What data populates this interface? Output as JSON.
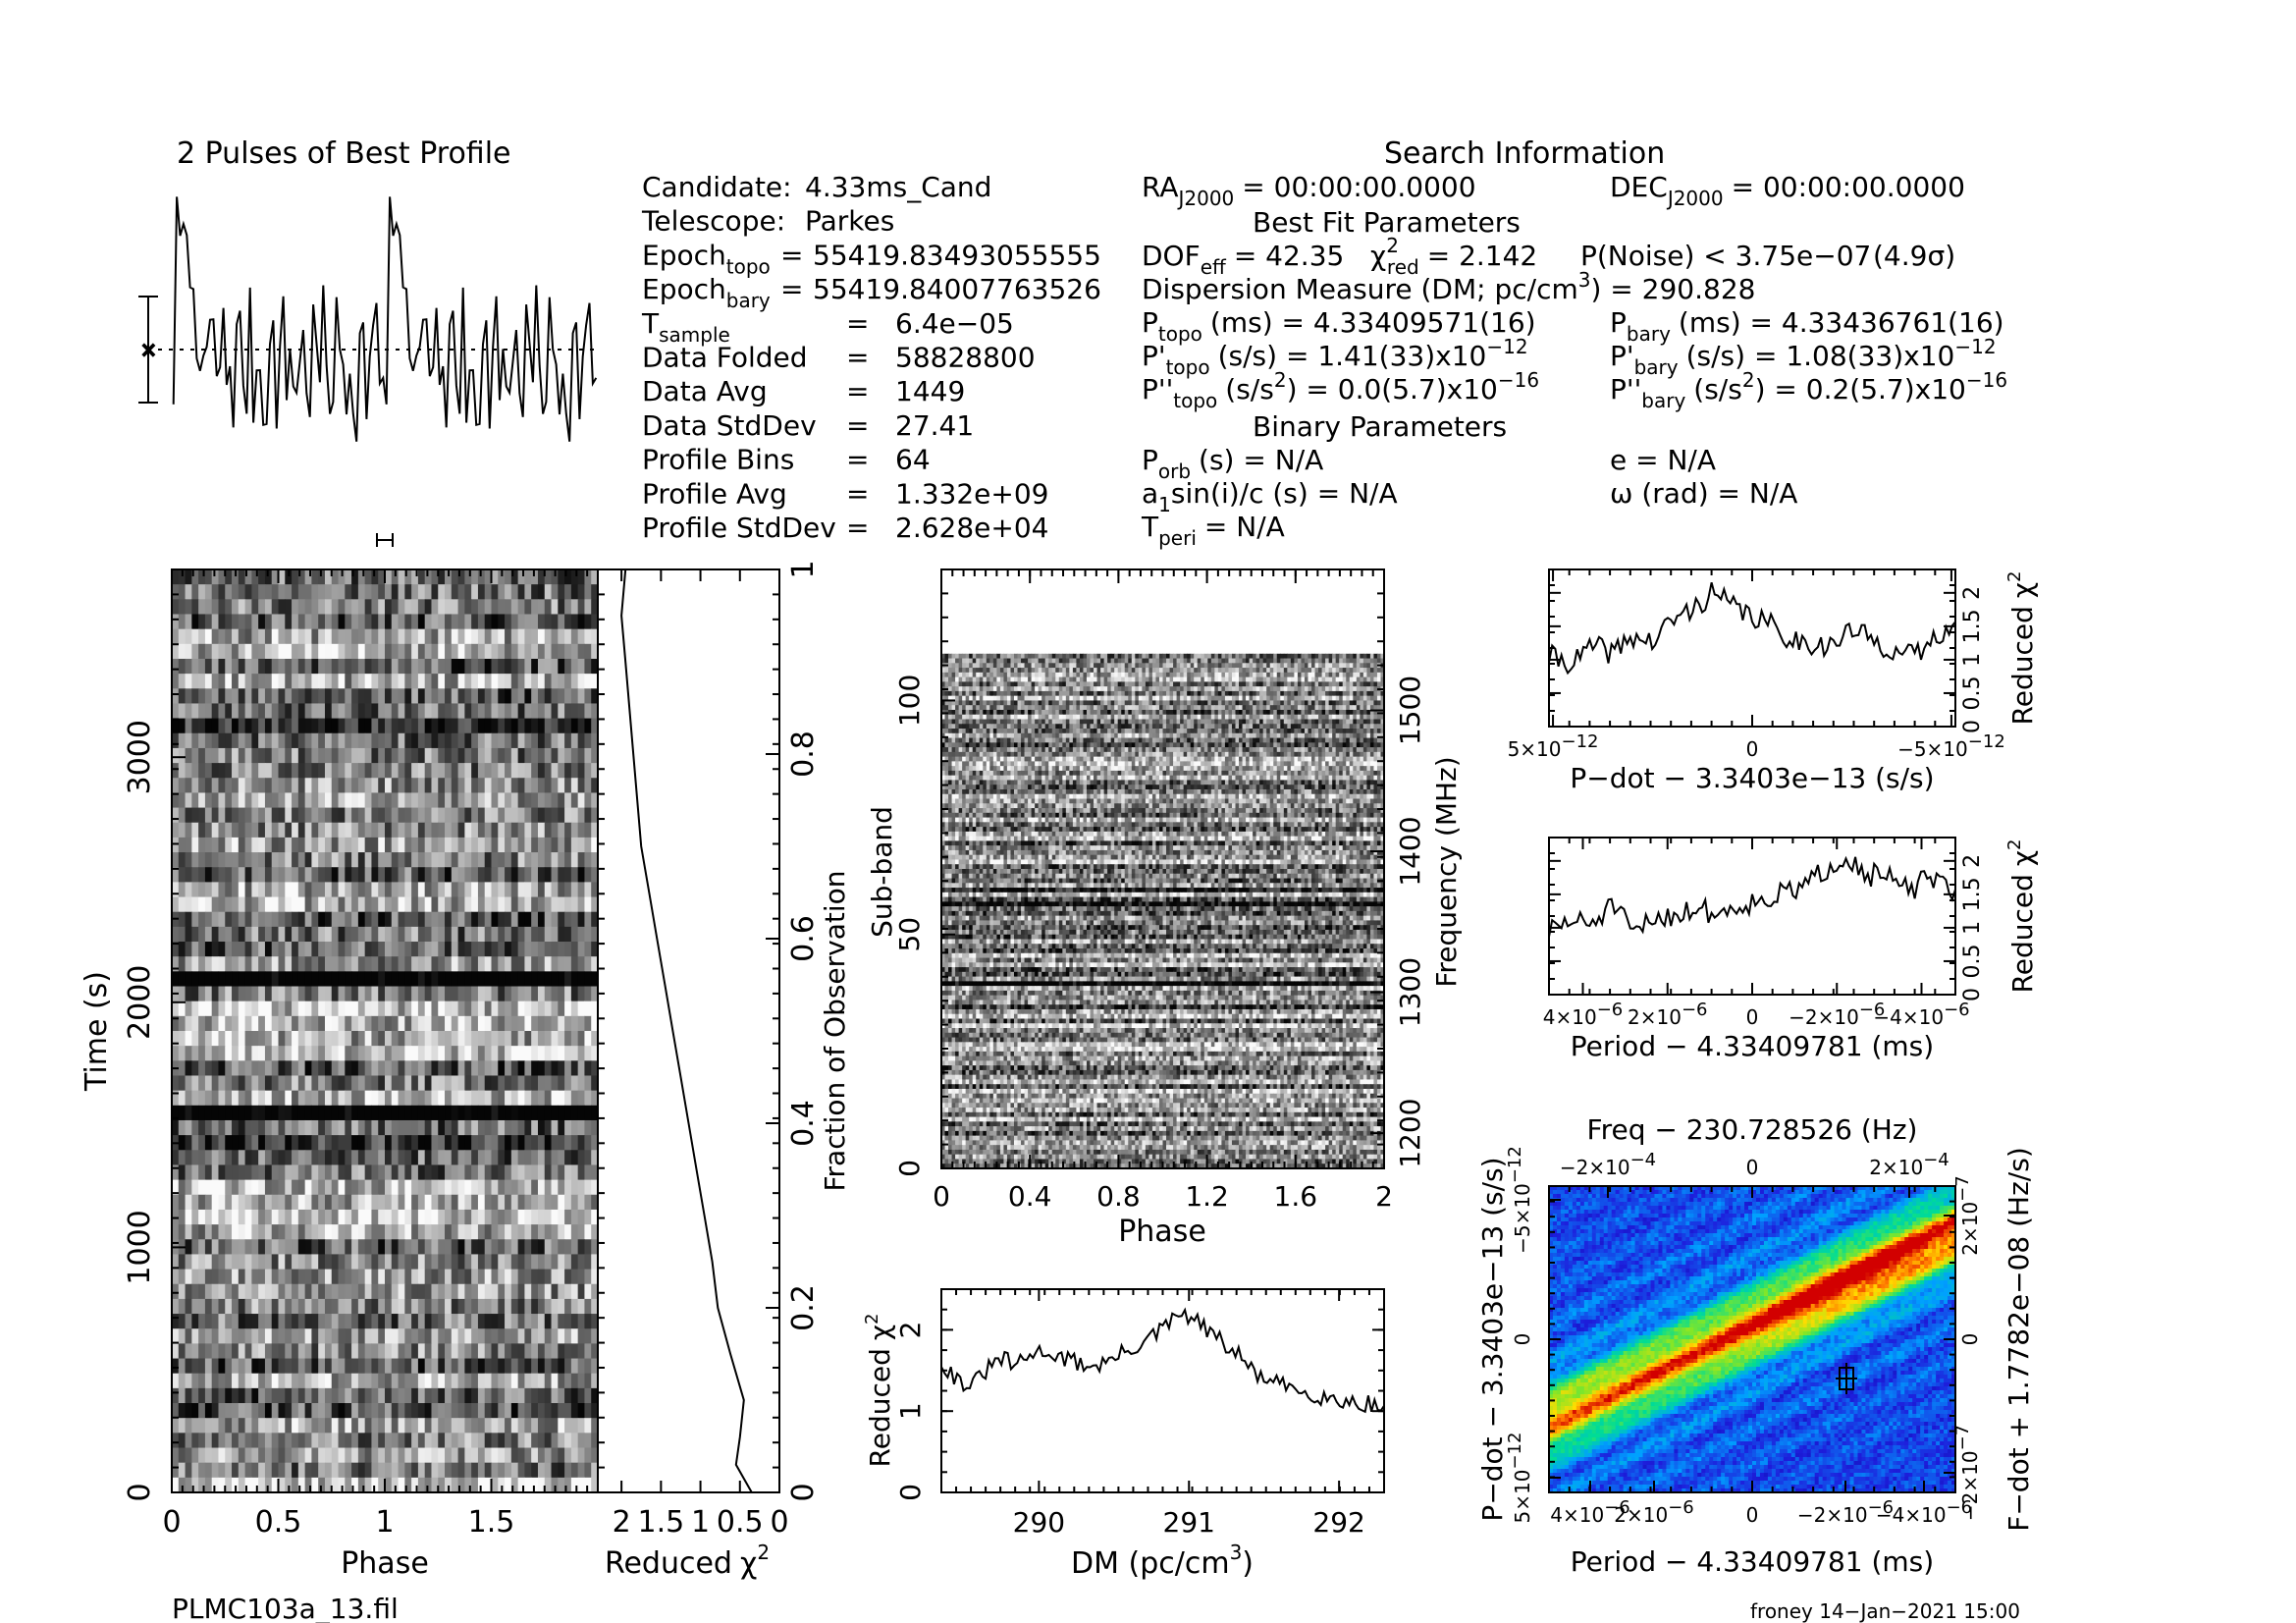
{
  "page": {
    "filename": "PLMC103a_13.fil",
    "footer": "froney 14−Jan−2021 15:00"
  },
  "profile": {
    "title": "2 Pulses of Best Profile"
  },
  "search_info": {
    "title": "Search Information",
    "left_rows": [
      {
        "label": "Candidate:",
        "sep": "",
        "value": "4.33ms_Cand"
      },
      {
        "label": "Telescope:",
        "sep": "",
        "value": "Parkes"
      },
      {
        "label": "Epoch",
        "sub": "topo",
        "sep": "=",
        "value": "55419.83493055555"
      },
      {
        "label": "Epoch",
        "sub": "bary",
        "sep": "=",
        "value": "55419.84007763526"
      },
      {
        "label": "T",
        "sub": "sample",
        "sep": "=",
        "value": "6.4e−05"
      },
      {
        "label": "Data Folded",
        "sep": "=",
        "value": "58828800"
      },
      {
        "label": "Data Avg",
        "sep": "=",
        "value": "1449"
      },
      {
        "label": "Data StdDev",
        "sep": "=",
        "value": "27.41"
      },
      {
        "label": "Profile Bins",
        "sep": "=",
        "value": "64"
      },
      {
        "label": "Profile Avg",
        "sep": "=",
        "value": "1.332e+09"
      },
      {
        "label": "Profile StdDev",
        "sep": "=",
        "value": "2.628e+04"
      }
    ],
    "ra": "RA",
    "ra_sub": "J2000",
    "ra_value": "= 00:00:00.0000",
    "dec": "DEC",
    "dec_sub": "J2000",
    "dec_value": "= 00:00:00.0000",
    "best_fit_title": "Best Fit Parameters",
    "dof_label": "DOF",
    "dof_sub": "eff",
    "dof_value": "= 42.35",
    "chi_sym": "χ",
    "chi_sup": "2",
    "chi_sub": "red",
    "chi_value": "= 2.142",
    "pnoise": "P(Noise) < 3.75e−07",
    "sigma": "(4.9σ)",
    "dm_line_a": "Dispersion Measure (DM; pc/cm",
    "dm_line_sup": "3",
    "dm_line_b": ") = 290.828",
    "p": "P",
    "ptopo_sub": "topo",
    "ptopo_value": "(ms) =  4.33409571(16)",
    "pbary_sub": "bary",
    "pbary_value": "(ms) =  4.33436761(16)",
    "pd": "P'",
    "pdtopo_value": "(s/s) =  1.41(33)x10",
    "pdtopo_exp": "−12",
    "pdbary_value": "(s/s) =  1.08(33)x10",
    "pdbary_exp": "−12",
    "pdd": "P''",
    "pddtopo_value": "(s/s",
    "pdd_sup": "2",
    "pddtopo_value2": ") = 0.0(5.7)x10",
    "pddtopo_exp": "−16",
    "pddbary_value": "(s/s",
    "pddbary_value2": ") =  0.2(5.7)x10",
    "pddbary_exp": "−16",
    "binary_title": "Binary Parameters",
    "porb_label": "P",
    "porb_sub": "orb",
    "porb_value": "(s) = N/A",
    "e_value": "e = N/A",
    "a1_label": "a",
    "a1_sub": "1",
    "a1_value": "sin(i)/c (s) = N/A",
    "omega_value": "ω (rad) = N/A",
    "tperi_label": "T",
    "tperi_sub": "peri",
    "tperi_value": "= N/A"
  },
  "chart_data": [
    {
      "id": "time_phase",
      "type": "heatmap",
      "xlabel": "Phase",
      "ylabel": "Time (s)",
      "xticks": [
        "0",
        "0.5",
        "1",
        "1.5"
      ],
      "xtick_values": [
        0,
        0.5,
        1,
        1.5
      ],
      "yticks": [
        "0",
        "1000",
        "2000",
        "3000"
      ],
      "ytick_values": [
        0,
        1000,
        2000,
        3000
      ],
      "xlim": [
        0,
        2
      ],
      "ylim": [
        0,
        3766
      ],
      "colormap": "grayscale",
      "right_axis_label": "Fraction of Observation",
      "right_ticks": [
        "0",
        "0.2",
        "0.4",
        "0.6",
        "0.8",
        "1"
      ]
    },
    {
      "id": "time_chi",
      "type": "line",
      "xlabel": "Reduced",
      "xlabel_sym": "χ",
      "xlabel_sup": "2",
      "xticks": [
        "2",
        "1.5",
        "1",
        "0.5",
        "0"
      ],
      "xtick_values": [
        2,
        1.5,
        1,
        0.5,
        0
      ],
      "xlim": [
        2.3,
        0
      ],
      "y_fraction": [
        0,
        0.03,
        0.06,
        0.1,
        0.15,
        0.2,
        0.25,
        0.3,
        0.35,
        0.4,
        0.45,
        0.5,
        0.55,
        0.6,
        0.65,
        0.7,
        0.75,
        0.8,
        0.85,
        0.9,
        0.95,
        1.0
      ],
      "values": [
        0.35,
        0.55,
        0.5,
        0.45,
        0.62,
        0.78,
        0.85,
        0.95,
        1.05,
        1.15,
        1.25,
        1.35,
        1.45,
        1.55,
        1.65,
        1.75,
        1.8,
        1.85,
        1.9,
        1.95,
        2.0,
        1.95
      ]
    },
    {
      "id": "subband_phase",
      "type": "heatmap",
      "xlabel": "Phase",
      "ylabel": "Sub-band",
      "right_ylabel": "Frequency (MHz)",
      "xticks": [
        "0",
        "0.4",
        "0.8",
        "1.2",
        "1.6",
        "2"
      ],
      "xtick_values": [
        0,
        0.4,
        0.8,
        1.2,
        1.6,
        2
      ],
      "yticks": [
        "0",
        "50",
        "100"
      ],
      "ytick_values": [
        0,
        50,
        100
      ],
      "right_ticks": [
        "1200",
        "1300",
        "1400",
        "1500"
      ],
      "right_tick_values": [
        1200,
        1300,
        1400,
        1500
      ],
      "xlim": [
        0,
        2
      ],
      "ylim": [
        0,
        128
      ],
      "freq_lim": [
        1175,
        1600
      ],
      "data_rows": 110,
      "colormap": "grayscale"
    },
    {
      "id": "dm_chi",
      "type": "line",
      "xlabel": "DM (pc/cm",
      "xlabel_sup": "3",
      "xlabel_end": ")",
      "ylabel": "Reduced",
      "ylabel_sym": "χ",
      "ylabel_sup": "2",
      "xticks": [
        "290",
        "291",
        "292"
      ],
      "xtick_values": [
        290,
        291,
        292
      ],
      "yticks": [
        "0",
        "1",
        "2"
      ],
      "ytick_values": [
        0,
        1,
        2
      ],
      "xlim": [
        289.35,
        292.3
      ],
      "ylim": [
        0,
        2.5
      ],
      "x": [
        289.35,
        289.45,
        289.55,
        289.65,
        289.75,
        289.85,
        289.95,
        290.05,
        290.15,
        290.25,
        290.35,
        290.45,
        290.55,
        290.65,
        290.75,
        290.85,
        290.95,
        291.05,
        291.15,
        291.25,
        291.35,
        291.45,
        291.55,
        291.65,
        291.75,
        291.85,
        291.95,
        292.05,
        292.15,
        292.3
      ],
      "values": [
        1.6,
        1.4,
        1.3,
        1.5,
        1.65,
        1.55,
        1.7,
        1.75,
        1.65,
        1.6,
        1.55,
        1.6,
        1.7,
        1.8,
        1.9,
        2.05,
        2.2,
        2.1,
        1.95,
        1.8,
        1.65,
        1.45,
        1.35,
        1.3,
        1.25,
        1.2,
        1.15,
        1.12,
        1.1,
        1.05
      ]
    },
    {
      "id": "pdot_chi",
      "type": "line",
      "xlabel": "P−dot − 3.3403e−13 (s/s)",
      "ylabel": "Reduced",
      "ylabel_sym": "χ",
      "ylabel_sup": "2",
      "xticks": [
        "5×10",
        "0",
        "−5×10"
      ],
      "xtick_exp": "−12",
      "xtick_values": [
        5,
        0,
        -5
      ],
      "yticks": [
        "0",
        "0.5",
        "1",
        "1.5",
        "2"
      ],
      "ytick_values": [
        0,
        0.5,
        1,
        1.5,
        2
      ],
      "xlim": [
        5.1,
        -5.1
      ],
      "ylim": [
        0,
        2.35
      ],
      "x": [
        5.1,
        4.5,
        4.0,
        3.5,
        3.0,
        2.5,
        2.0,
        1.5,
        1.0,
        0.5,
        0.0,
        -0.5,
        -1.0,
        -1.5,
        -2.0,
        -2.5,
        -3.0,
        -3.5,
        -4.0,
        -4.5,
        -5.1
      ],
      "values": [
        1.05,
        0.95,
        1.2,
        1.1,
        1.35,
        1.25,
        1.6,
        1.75,
        2.0,
        1.8,
        1.65,
        1.5,
        1.3,
        1.25,
        1.2,
        1.45,
        1.3,
        1.15,
        1.05,
        1.25,
        1.65
      ]
    },
    {
      "id": "period_chi",
      "type": "line",
      "xlabel": "Period − 4.33409781 (ms)",
      "ylabel": "Reduced",
      "ylabel_sym": "χ",
      "ylabel_sup": "2",
      "xticks": [
        "4×10",
        "2×10",
        "0",
        "−2×10",
        "−4×10"
      ],
      "xtick_exp": "−6",
      "xtick_values": [
        4,
        2,
        0,
        -2,
        -4
      ],
      "yticks": [
        "0",
        "0.5",
        "1",
        "1.5",
        "2"
      ],
      "ytick_values": [
        0,
        0.5,
        1,
        1.5,
        2
      ],
      "xlim": [
        4.8,
        -4.8
      ],
      "ylim": [
        0,
        2.35
      ],
      "x": [
        4.8,
        4.3,
        3.8,
        3.3,
        2.8,
        2.3,
        1.8,
        1.3,
        0.8,
        0.3,
        -0.2,
        -0.7,
        -1.2,
        -1.7,
        -2.2,
        -2.7,
        -3.2,
        -3.7,
        -4.2,
        -4.8
      ],
      "values": [
        0.95,
        1.1,
        1.05,
        1.35,
        0.9,
        1.15,
        1.2,
        1.3,
        1.2,
        1.35,
        1.4,
        1.5,
        1.6,
        1.85,
        2.1,
        1.8,
        1.75,
        1.55,
        1.75,
        1.5
      ]
    },
    {
      "id": "ppdot_plane",
      "type": "heatmap",
      "title": "Freq − 230.728526 (Hz)",
      "xlabel": "Period − 4.33409781 (ms)",
      "ylabel": "P−dot − 3.3403e−13 (s/s)",
      "right_ylabel": "F−dot + 1.7782e−08 (Hz/s)",
      "xticks": [
        "4×10",
        "2×10",
        "0",
        "−2×10",
        "−4×10"
      ],
      "xtick_exp": "−6",
      "top_ticks": [
        "−2×10",
        "0",
        "2×10"
      ],
      "top_exp": "−4",
      "left_ticks": [
        "5×10",
        "0",
        "−5×10"
      ],
      "left_exp": "−12",
      "right_ticks": [
        "−2×10",
        "0",
        "2×10"
      ],
      "right_exp": "−7",
      "colormap": "jet",
      "best_fit_marker": [
        -2,
        -0.5
      ]
    }
  ]
}
